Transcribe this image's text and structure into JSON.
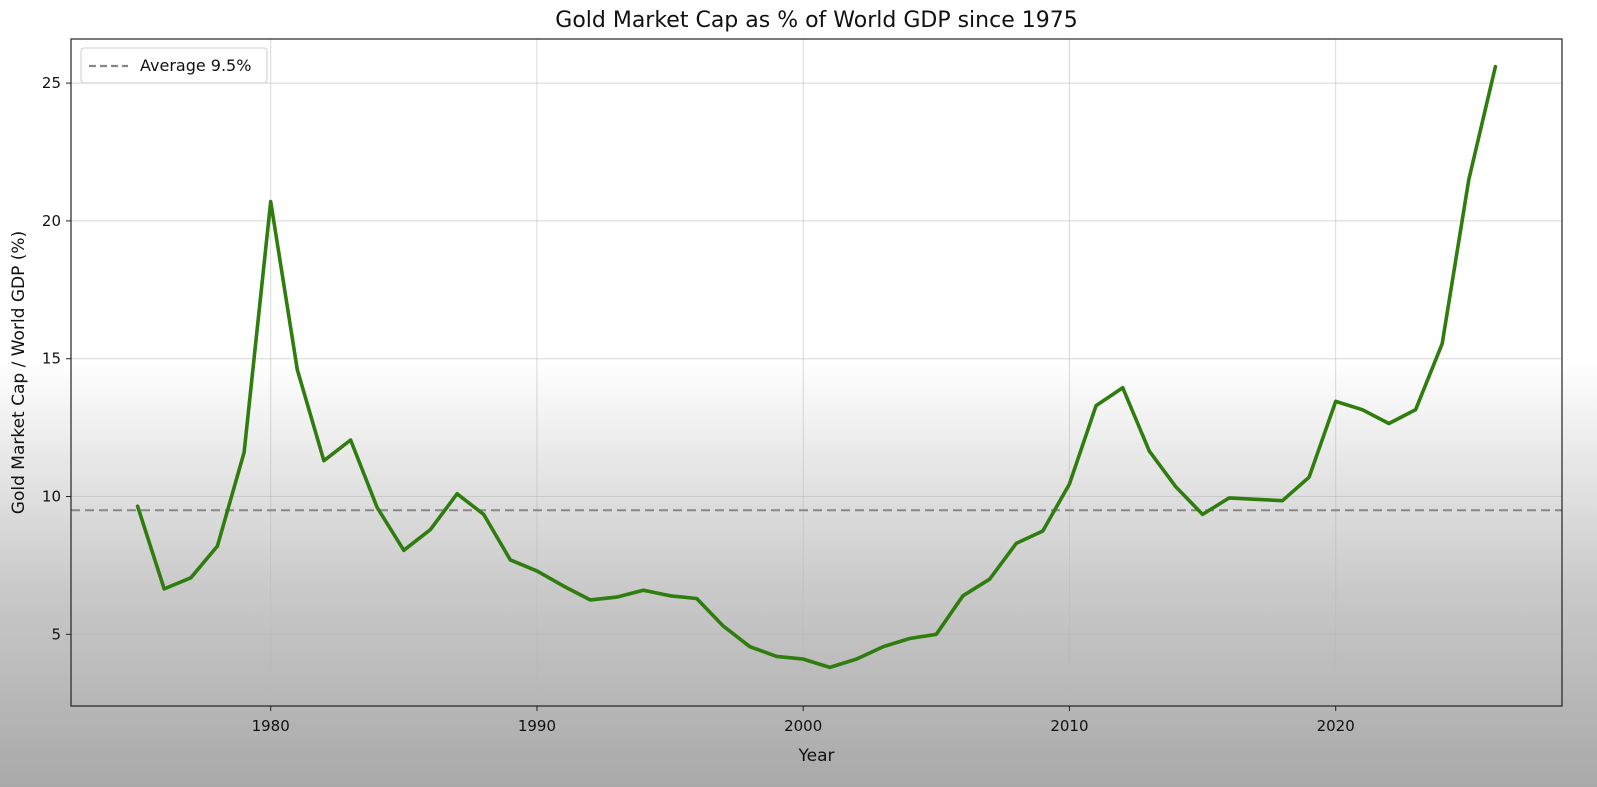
{
  "chart_data": {
    "type": "line",
    "title": "Gold Market Cap as % of World GDP since 1975",
    "xlabel": "Year",
    "ylabel": "Gold Market Cap / World GDP (%)",
    "xlim": [
      1972.5,
      2028.5
    ],
    "ylim": [
      2.4,
      26.6
    ],
    "xticks": [
      1980,
      1990,
      2000,
      2010,
      2020
    ],
    "yticks": [
      5,
      10,
      15,
      20,
      25
    ],
    "grid": true,
    "legend_position": "top-left",
    "series": [
      {
        "color": "#2e7d0e",
        "x": [
          1975,
          1976,
          1977,
          1978,
          1979,
          1980,
          1981,
          1982,
          1983,
          1984,
          1985,
          1986,
          1987,
          1988,
          1989,
          1990,
          1991,
          1992,
          1993,
          1994,
          1995,
          1996,
          1997,
          1998,
          1999,
          2000,
          2001,
          2002,
          2003,
          2004,
          2005,
          2006,
          2007,
          2008,
          2009,
          2010,
          2011,
          2012,
          2013,
          2014,
          2015,
          2016,
          2017,
          2018,
          2019,
          2020,
          2021,
          2022,
          2023,
          2024,
          2025,
          2026
        ],
        "y": [
          9.65,
          6.65,
          7.05,
          8.2,
          11.6,
          20.7,
          14.6,
          11.3,
          12.05,
          9.6,
          8.05,
          8.8,
          10.1,
          9.35,
          7.7,
          7.3,
          6.75,
          6.25,
          6.35,
          6.6,
          6.4,
          6.3,
          5.3,
          4.55,
          4.2,
          4.1,
          3.8,
          4.1,
          4.55,
          4.85,
          5.0,
          6.4,
          7.0,
          8.3,
          8.75,
          10.45,
          13.3,
          13.95,
          11.65,
          10.35,
          9.35,
          9.95,
          9.9,
          9.85,
          10.7,
          13.45,
          13.15,
          12.65,
          13.15,
          15.55,
          21.5,
          25.6
        ]
      }
    ],
    "reference_lines": [
      {
        "name": "Average 9.5%",
        "value": 9.5,
        "style": "dashed",
        "color": "#888888"
      }
    ]
  }
}
